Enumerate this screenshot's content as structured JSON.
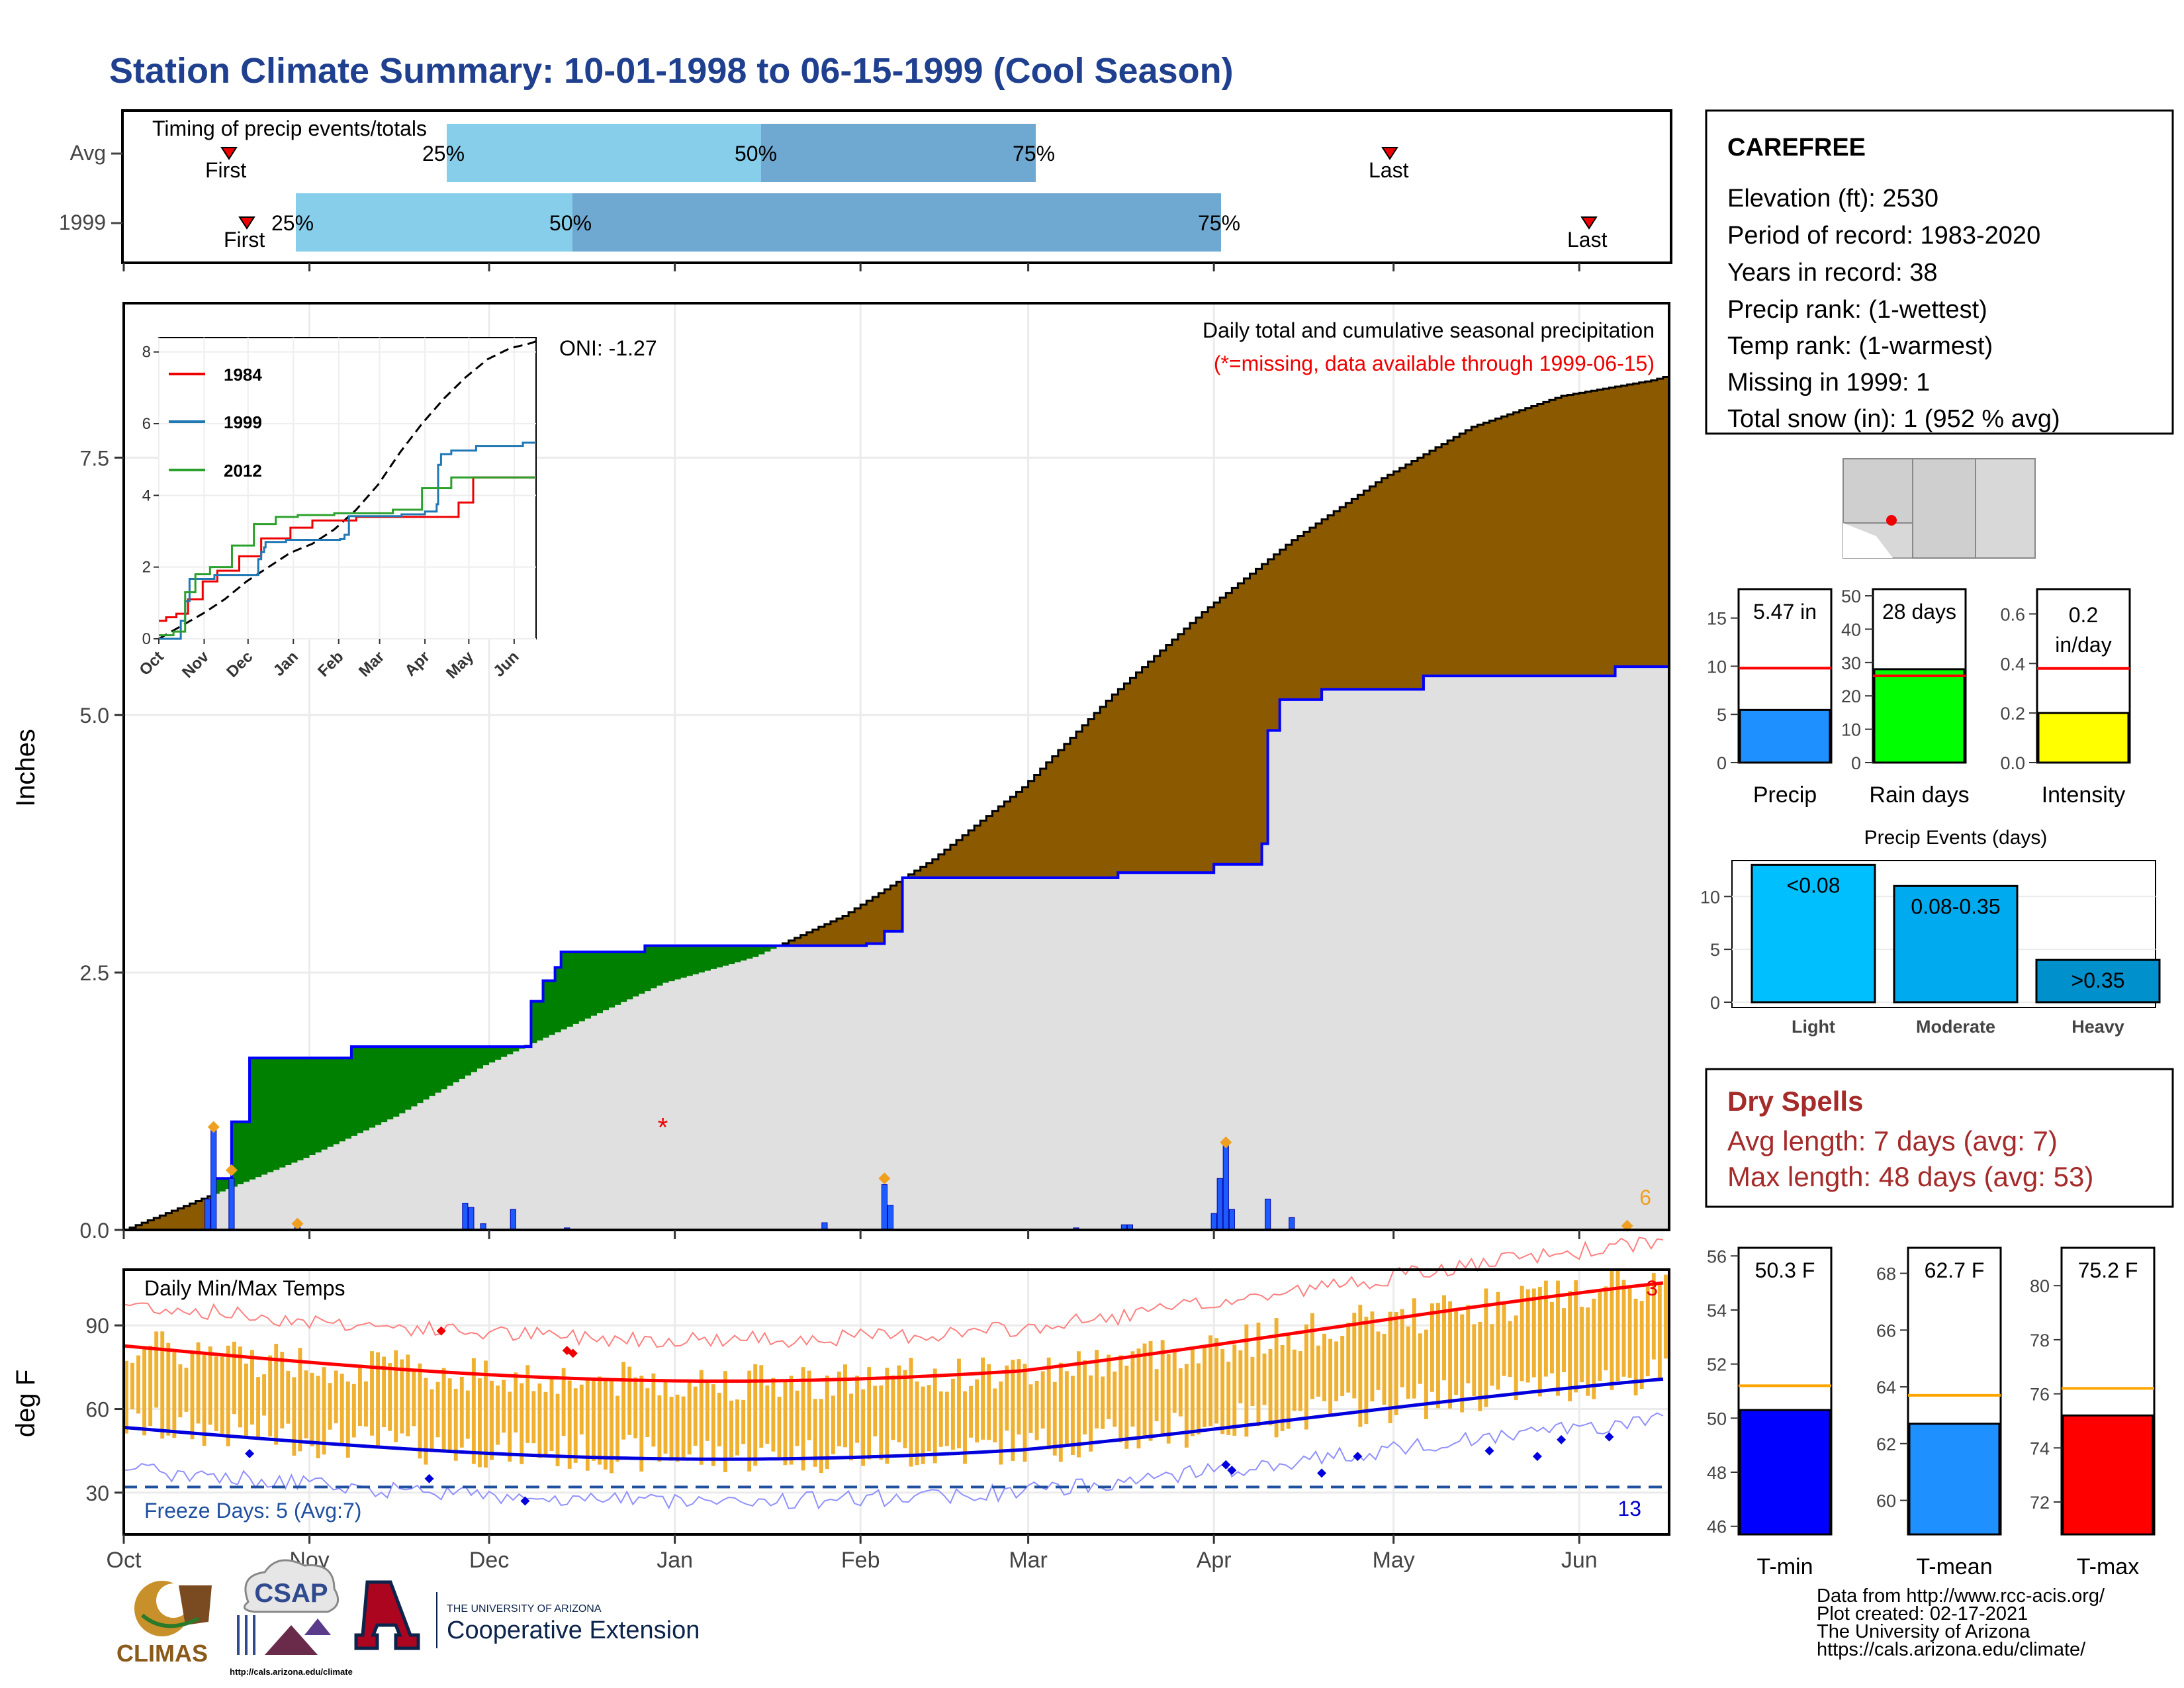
{
  "title": "Station Climate Summary: 10-01-1998 to 06-15-1999 (Cool Season)",
  "station_box": {
    "name": "CAREFREE",
    "lines": [
      "Elevation (ft): 2530",
      "Period of record: 1983-2020",
      "Years in record: 38",
      "Precip rank:  (1-wettest)",
      "Temp rank:  (1-warmest)",
      "Missing in 1999: 1",
      "Total snow (in): 1 (952 % avg)"
    ]
  },
  "timing": {
    "title": "Timing of precip events/totals",
    "rows": [
      "Avg",
      "1999"
    ],
    "first_label": "First",
    "last_label": "Last",
    "pct_labels": [
      "25%",
      "50%",
      "75%"
    ]
  },
  "main_panel": {
    "ylabel": "Inches",
    "yticks": [
      "0.0",
      "2.5",
      "5.0",
      "7.5"
    ],
    "xticks": [
      "Oct",
      "Nov",
      "Dec",
      "Jan",
      "Feb",
      "Mar",
      "Apr",
      "May",
      "Jun"
    ],
    "caption1": "Daily total and cumulative seasonal precipitation",
    "caption2": "(*=missing, data available through 1999-06-15)",
    "oni": "ONI: -1.27",
    "missing_marker": "*",
    "count_label": "6"
  },
  "inset": {
    "yticks": [
      "0",
      "2",
      "4",
      "6",
      "8"
    ],
    "xticks": [
      "Oct",
      "Nov",
      "Dec",
      "Jan",
      "Feb",
      "Mar",
      "Apr",
      "May",
      "Jun"
    ],
    "legend": [
      "1984",
      "1999",
      "2012"
    ]
  },
  "temp_panel": {
    "ylabel": "deg F",
    "title": "Daily Min/Max Temps",
    "yticks": [
      "30",
      "60",
      "90"
    ],
    "freeze": "Freeze Days: 5 (Avg:7)",
    "hot_count": "3",
    "cold_count": "13"
  },
  "side_bars": {
    "precip": {
      "value_label": "5.47 in",
      "label": "Precip",
      "yticks": [
        "0",
        "5",
        "10",
        "15"
      ]
    },
    "raindays": {
      "value_label": "28 days",
      "label": "Rain days",
      "yticks": [
        "0",
        "10",
        "20",
        "30",
        "40",
        "50"
      ]
    },
    "intensity": {
      "value_label": "0.2 in/day",
      "label": "Intensity",
      "yticks": [
        "0.0",
        "0.2",
        "0.4",
        "0.6"
      ]
    }
  },
  "events": {
    "title": "Precip Events (days)",
    "yticks": [
      "0",
      "5",
      "10"
    ],
    "categories": [
      "Light",
      "Moderate",
      "Heavy"
    ],
    "bar_labels": [
      "<0.08",
      "0.08-0.35",
      ">0.35"
    ]
  },
  "dry_spells": {
    "title": "Dry Spells",
    "avg": "Avg length: 7 days (avg: 7)",
    "max": "Max length: 48 days (avg: 53)"
  },
  "temp_bars": {
    "tmin": {
      "value_label": "50.3 F",
      "label": "T-min",
      "yticks": [
        "46",
        "48",
        "50",
        "52",
        "54",
        "56"
      ]
    },
    "tmean": {
      "value_label": "62.7 F",
      "label": "T-mean",
      "yticks": [
        "60",
        "62",
        "64",
        "66",
        "68"
      ]
    },
    "tmax": {
      "value_label": "75.2 F",
      "label": "T-max",
      "yticks": [
        "72",
        "74",
        "76",
        "78",
        "80"
      ]
    }
  },
  "credits": [
    "Data from http://www.rcc-acis.org/",
    "Plot created: 02-17-2021",
    "The University of Arizona",
    "https://cals.arizona.edu/climate/"
  ],
  "logos": {
    "climas": "CLIMAS",
    "csap": "CSAP",
    "csap_url": "http://cals.arizona.edu/climate",
    "ua_small": "THE UNIVERSITY OF ARIZONA",
    "ua_big": "Cooperative Extension"
  },
  "colors": {
    "title": "#1f3f8f",
    "brown": "#8b5a00",
    "green": "#008000",
    "blue": "#0000ff",
    "gray": "#e0e0e0",
    "light_blue": "#87ceeb",
    "mid_blue": "#6fa8d0",
    "orange": "#f0b030",
    "red": "#ff0000",
    "dry": "#a52a2a"
  },
  "chart_data": [
    {
      "type": "area",
      "name": "cumulative precipitation",
      "units": "inches",
      "ylim": [
        0,
        9
      ],
      "average_cumulative": [
        [
          0,
          0
        ],
        [
          15,
          0.35
        ],
        [
          30,
          0.7
        ],
        [
          45,
          1.1
        ],
        [
          60,
          1.6
        ],
        [
          75,
          2.0
        ],
        [
          90,
          2.4
        ],
        [
          105,
          2.65
        ],
        [
          120,
          3.05
        ],
        [
          135,
          3.6
        ],
        [
          150,
          4.3
        ],
        [
          165,
          5.2
        ],
        [
          180,
          6.0
        ],
        [
          195,
          6.7
        ],
        [
          210,
          7.3
        ],
        [
          225,
          7.8
        ],
        [
          240,
          8.1
        ],
        [
          255,
          8.25
        ],
        [
          258,
          8.3
        ]
      ],
      "y1999_cumulative": [
        [
          0,
          0
        ],
        [
          14,
          0
        ],
        [
          15,
          0.5
        ],
        [
          18,
          1.05
        ],
        [
          21,
          1.67
        ],
        [
          38,
          1.78
        ],
        [
          56,
          1.78
        ],
        [
          57,
          1.78
        ],
        [
          68,
          2.22
        ],
        [
          70,
          2.42
        ],
        [
          72,
          2.55
        ],
        [
          73,
          2.7
        ],
        [
          87,
          2.76
        ],
        [
          124,
          2.78
        ],
        [
          127,
          2.9
        ],
        [
          130,
          3.42
        ],
        [
          166,
          3.47
        ],
        [
          182,
          3.55
        ],
        [
          190,
          3.75
        ],
        [
          191,
          4.85
        ],
        [
          193,
          5.15
        ],
        [
          200,
          5.25
        ],
        [
          217,
          5.38
        ],
        [
          247,
          5.38
        ],
        [
          249,
          5.47
        ],
        [
          258,
          5.47
        ]
      ],
      "daily_precip": [
        [
          14,
          0.3
        ],
        [
          15,
          1.0
        ],
        [
          18,
          0.5
        ],
        [
          29,
          0.06
        ],
        [
          57,
          0.26
        ],
        [
          58,
          0.22
        ],
        [
          60,
          0.06
        ],
        [
          65,
          0.2
        ],
        [
          74,
          0.02
        ],
        [
          117,
          0.07
        ],
        [
          127,
          0.44
        ],
        [
          128,
          0.24
        ],
        [
          159,
          0.02
        ],
        [
          167,
          0.05
        ],
        [
          168,
          0.05
        ],
        [
          182,
          0.16
        ],
        [
          183,
          0.5
        ],
        [
          184,
          0.85
        ],
        [
          185,
          0.2
        ],
        [
          191,
          0.3
        ],
        [
          195,
          0.12
        ],
        [
          251,
          0.04
        ]
      ],
      "missing_day": 90,
      "xticks": [
        "Oct",
        "Nov",
        "Dec",
        "Jan",
        "Feb",
        "Mar",
        "Apr",
        "May",
        "Jun"
      ]
    },
    {
      "type": "line",
      "name": "inset cumulative comparison",
      "series": [
        {
          "name": "1984"
        },
        {
          "name": "1999"
        },
        {
          "name": "2012"
        }
      ],
      "ylim": [
        0,
        8
      ],
      "xticks": [
        "Oct",
        "Nov",
        "Dec",
        "Jan",
        "Feb",
        "Mar",
        "Apr",
        "May",
        "Jun"
      ]
    },
    {
      "type": "bar",
      "name": "daily temperature",
      "units": "deg F",
      "ylim": [
        15,
        110
      ],
      "freeze_line": 32,
      "freeze_days": 5
    },
    {
      "type": "bar",
      "categories": [
        "Precip",
        "Rain days",
        "Intensity"
      ],
      "values": [
        5.47,
        28,
        0.2
      ],
      "averages": [
        9.8,
        26,
        0.38
      ]
    },
    {
      "type": "bar",
      "title": "Precip Events (days)",
      "categories": [
        "Light",
        "Moderate",
        "Heavy"
      ],
      "values": [
        13,
        11,
        4
      ],
      "ylim": [
        0,
        13
      ]
    },
    {
      "type": "bar",
      "categories": [
        "T-min",
        "T-mean",
        "T-max"
      ],
      "values": [
        50.3,
        62.7,
        75.2
      ],
      "averages": [
        51.2,
        63.7,
        76.2
      ]
    }
  ]
}
